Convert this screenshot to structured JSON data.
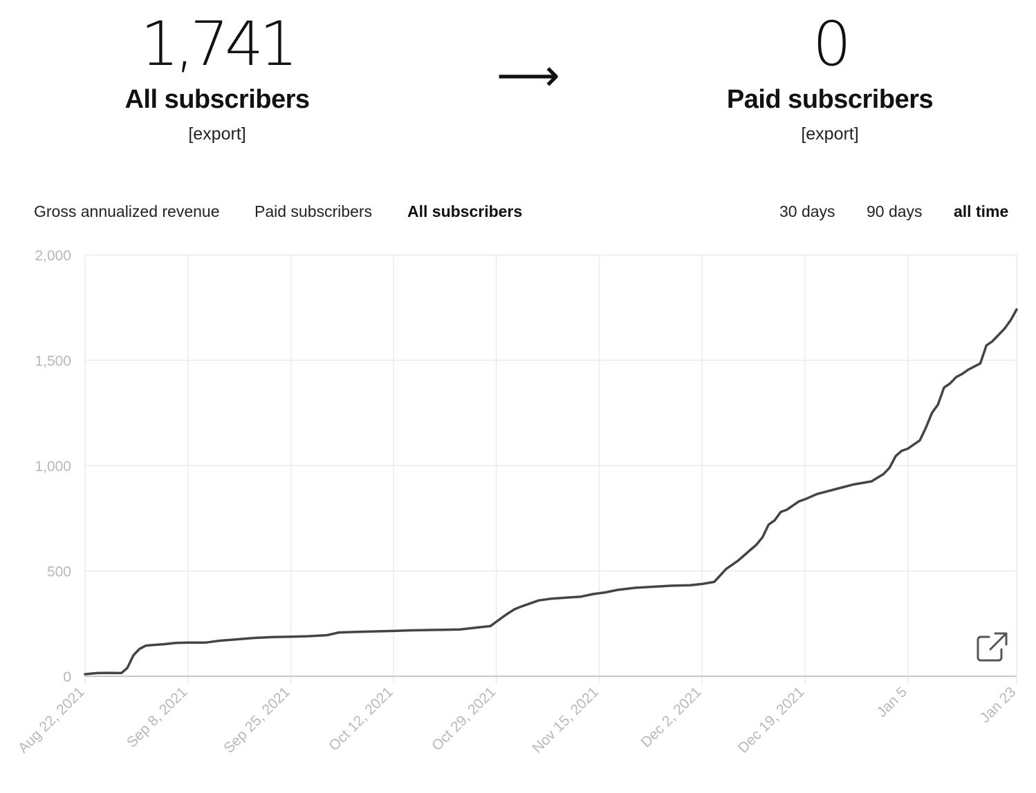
{
  "summary": {
    "all": {
      "count": "1,741",
      "label": "All subscribers",
      "export": "[export]"
    },
    "arrow": "⟶",
    "paid": {
      "count": "0",
      "label": "Paid subscribers",
      "export": "[export]"
    }
  },
  "metric_tabs": [
    {
      "label": "Gross annualized revenue",
      "active": false
    },
    {
      "label": "Paid subscribers",
      "active": false
    },
    {
      "label": "All subscribers",
      "active": true
    }
  ],
  "range_tabs": [
    {
      "label": "30 days",
      "active": false
    },
    {
      "label": "90 days",
      "active": false
    },
    {
      "label": "all time",
      "active": true
    }
  ],
  "icons": {
    "open_external": "external-link-icon"
  },
  "colors": {
    "line": "#444444",
    "grid": "#ececec",
    "axis_text": "#b8b8b8",
    "baseline": "#c8c8c8"
  },
  "chart_data": {
    "type": "line",
    "xlabel": "",
    "ylabel": "",
    "ylim": [
      0,
      2000
    ],
    "y_ticks": [
      0,
      500,
      1000,
      1500,
      2000
    ],
    "y_tick_labels": [
      "0",
      "500",
      "1,000",
      "1,500",
      "2,000"
    ],
    "x_ticks": [
      "2021-08-22",
      "2021-09-08",
      "2021-09-25",
      "2021-10-12",
      "2021-10-29",
      "2021-11-15",
      "2021-12-02",
      "2021-12-19",
      "2022-01-05",
      "2022-01-23"
    ],
    "x_tick_labels": [
      "Aug 22, 2021",
      "Sep 8, 2021",
      "Sep 25, 2021",
      "Oct 12, 2021",
      "Oct 29, 2021",
      "Nov 15, 2021",
      "Dec 2, 2021",
      "Dec 19, 2021",
      "Jan 5",
      "Jan 23"
    ],
    "grid": true,
    "series": [
      {
        "x": [
          "2021-08-22",
          "2021-08-24",
          "2021-08-26",
          "2021-08-28",
          "2021-08-29",
          "2021-08-30",
          "2021-08-31",
          "2021-09-01",
          "2021-09-02",
          "2021-09-04",
          "2021-09-06",
          "2021-09-08",
          "2021-09-11",
          "2021-09-13",
          "2021-09-16",
          "2021-09-19",
          "2021-09-22",
          "2021-09-25",
          "2021-09-28",
          "2021-10-01",
          "2021-10-03",
          "2021-10-05",
          "2021-10-08",
          "2021-10-12",
          "2021-10-15",
          "2021-10-19",
          "2021-10-23",
          "2021-10-26",
          "2021-10-28",
          "2021-10-30",
          "2021-10-31",
          "2021-11-01",
          "2021-11-02",
          "2021-11-03",
          "2021-11-05",
          "2021-11-07",
          "2021-11-09",
          "2021-11-12",
          "2021-11-14",
          "2021-11-16",
          "2021-11-18",
          "2021-11-21",
          "2021-11-24",
          "2021-11-27",
          "2021-11-30",
          "2021-12-02",
          "2021-12-04",
          "2021-12-06",
          "2021-12-07",
          "2021-12-08",
          "2021-12-10",
          "2021-12-11",
          "2021-12-12",
          "2021-12-13",
          "2021-12-14",
          "2021-12-15",
          "2021-12-16",
          "2021-12-17",
          "2021-12-18",
          "2021-12-19",
          "2021-12-21",
          "2021-12-23",
          "2021-12-25",
          "2021-12-27",
          "2021-12-28",
          "2021-12-30",
          "2022-01-01",
          "2022-01-02",
          "2022-01-03",
          "2022-01-04",
          "2022-01-05",
          "2022-01-06",
          "2022-01-07",
          "2022-01-08",
          "2022-01-09",
          "2022-01-10",
          "2022-01-11",
          "2022-01-12",
          "2022-01-13",
          "2022-01-14",
          "2022-01-15",
          "2022-01-17",
          "2022-01-18",
          "2022-01-19",
          "2022-01-20",
          "2022-01-21",
          "2022-01-22",
          "2022-01-23"
        ],
        "y": [
          10,
          15,
          16,
          15,
          40,
          100,
          130,
          145,
          148,
          152,
          158,
          160,
          160,
          168,
          175,
          182,
          186,
          188,
          190,
          195,
          208,
          210,
          212,
          215,
          218,
          220,
          222,
          232,
          238,
          280,
          300,
          318,
          330,
          340,
          360,
          368,
          372,
          378,
          390,
          398,
          410,
          420,
          425,
          430,
          432,
          438,
          448,
          510,
          530,
          550,
          600,
          625,
          660,
          720,
          740,
          780,
          790,
          810,
          830,
          840,
          865,
          880,
          895,
          910,
          915,
          925,
          960,
          990,
          1045,
          1070,
          1080,
          1100,
          1120,
          1180,
          1250,
          1290,
          1370,
          1390,
          1420,
          1435,
          1455,
          1485,
          1570,
          1590,
          1620,
          1650,
          1690,
          1741
        ]
      }
    ]
  }
}
